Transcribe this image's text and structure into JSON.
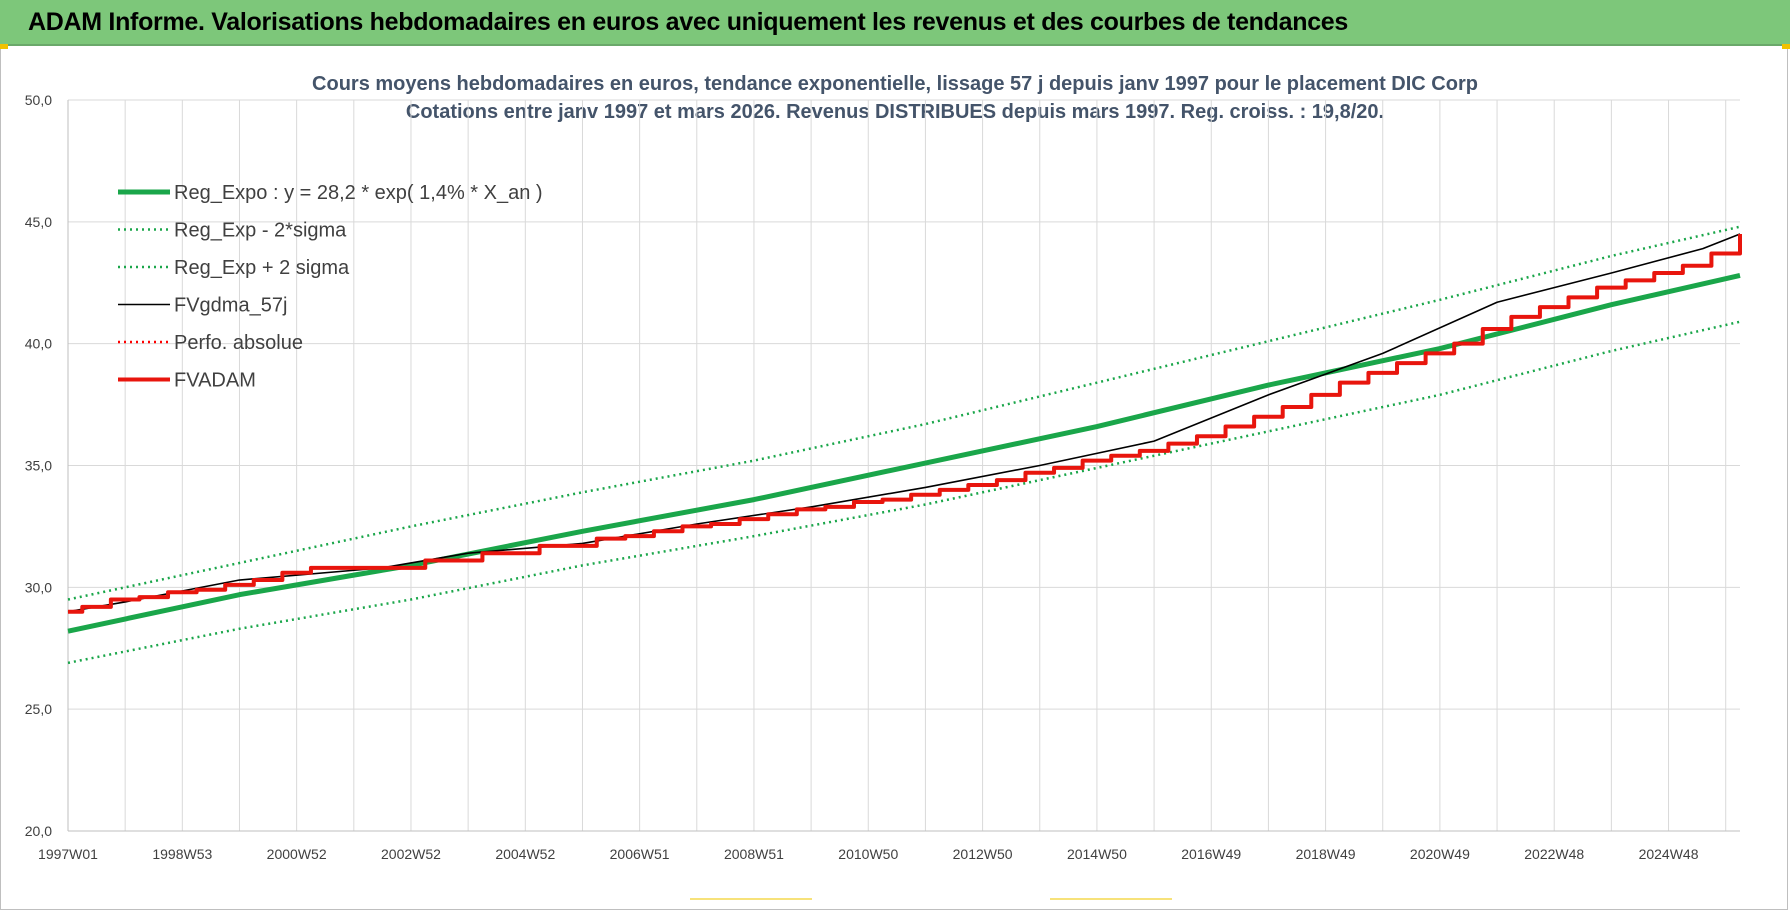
{
  "banner": {
    "title": "ADAM Informe. Valorisations hebdomadaires en euros avec uniquement les revenus et des courbes de tendances",
    "color": "#7dc77a"
  },
  "chart_data": {
    "type": "line",
    "title_line1": "Cours moyens hebdomadaires en euros, tendance exponentielle, lissage 57 j depuis janv 1997 pour le placement DIC Corp",
    "title_line2": "Cotations entre janv 1997 et mars 2026. Revenus DISTRIBUES depuis mars 1997. Reg. croiss. : 19,8/20.",
    "ylim": [
      20,
      50
    ],
    "yticks": [
      "20,0",
      "25,0",
      "30,0",
      "35,0",
      "40,0",
      "45,0",
      "50,0"
    ],
    "xlim": [
      1997.0,
      2026.25
    ],
    "xticks": [
      {
        "label": "1997W01",
        "year": 1997.0
      },
      {
        "label": "1998W53",
        "year": 1999.0
      },
      {
        "label": "2000W52",
        "year": 2001.0
      },
      {
        "label": "2002W52",
        "year": 2003.0
      },
      {
        "label": "2004W52",
        "year": 2005.0
      },
      {
        "label": "2006W51",
        "year": 2007.0
      },
      {
        "label": "2008W51",
        "year": 2009.0
      },
      {
        "label": "2010W50",
        "year": 2011.0
      },
      {
        "label": "2012W50",
        "year": 2013.0
      },
      {
        "label": "2014W50",
        "year": 2015.0
      },
      {
        "label": "2016W49",
        "year": 2017.0
      },
      {
        "label": "2018W49",
        "year": 2019.0
      },
      {
        "label": "2020W49",
        "year": 2021.0
      },
      {
        "label": "2022W48",
        "year": 2023.0
      },
      {
        "label": "2024W48",
        "year": 2025.0
      }
    ],
    "grid": true,
    "legend_position": "top-left",
    "series": [
      {
        "name": "Reg_Expo : y = 28,2 * exp( 1,4% *  X_an )",
        "color": "#1aa64a",
        "style": "solid-thick",
        "x": [
          1997.0,
          2000.0,
          2003.0,
          2006.0,
          2009.0,
          2012.0,
          2015.0,
          2018.0,
          2021.0,
          2024.0,
          2026.25
        ],
        "y": [
          28.2,
          29.7,
          30.9,
          32.3,
          33.6,
          35.1,
          36.6,
          38.3,
          39.8,
          41.6,
          42.8
        ]
      },
      {
        "name": "Reg_Exp - 2*sigma",
        "color": "#1aa64a",
        "style": "dotted",
        "x": [
          1997.0,
          2000.0,
          2003.0,
          2006.0,
          2009.0,
          2012.0,
          2015.0,
          2018.0,
          2021.0,
          2024.0,
          2026.25
        ],
        "y": [
          26.9,
          28.3,
          29.5,
          30.9,
          32.1,
          33.4,
          34.9,
          36.4,
          37.9,
          39.7,
          40.9
        ]
      },
      {
        "name": "Reg_Exp + 2 sigma",
        "color": "#1aa64a",
        "style": "dotted",
        "x": [
          1997.0,
          2000.0,
          2003.0,
          2006.0,
          2009.0,
          2012.0,
          2015.0,
          2018.0,
          2021.0,
          2024.0,
          2026.25
        ],
        "y": [
          29.5,
          31.0,
          32.5,
          33.9,
          35.2,
          36.7,
          38.4,
          40.1,
          41.8,
          43.6,
          44.8
        ]
      },
      {
        "name": "FVgdma_57j",
        "color": "#000000",
        "style": "solid",
        "x": [
          1997.0,
          1998.0,
          2000.0,
          2002.5,
          2004.0,
          2006.0,
          2008.0,
          2010.0,
          2012.0,
          2014.0,
          2016.0,
          2018.0,
          2020.0,
          2022.0,
          2024.0,
          2025.6,
          2026.25
        ],
        "y": [
          29.0,
          29.4,
          30.3,
          30.8,
          31.4,
          31.8,
          32.6,
          33.3,
          34.1,
          35.0,
          36.0,
          37.9,
          39.6,
          41.7,
          42.9,
          43.9,
          44.5
        ]
      },
      {
        "name": "Perfo. absolue",
        "color": "#ff0000",
        "style": "dotted",
        "x": [],
        "y": []
      },
      {
        "name": "FVADAM",
        "color": "#e8150d",
        "style": "step-thick",
        "x": [
          1997.0,
          1997.25,
          1997.75,
          1998.25,
          1998.75,
          1999.25,
          1999.75,
          2000.25,
          2000.75,
          2001.25,
          2001.75,
          2002.25,
          2002.75,
          2003.25,
          2003.75,
          2004.25,
          2004.75,
          2005.25,
          2005.75,
          2006.25,
          2006.75,
          2007.25,
          2007.75,
          2008.25,
          2008.75,
          2009.25,
          2009.75,
          2010.25,
          2010.75,
          2011.25,
          2011.75,
          2012.25,
          2012.75,
          2013.25,
          2013.75,
          2014.25,
          2014.75,
          2015.25,
          2015.75,
          2016.25,
          2016.75,
          2017.25,
          2017.75,
          2018.25,
          2018.75,
          2019.25,
          2019.75,
          2020.25,
          2020.75,
          2021.25,
          2021.75,
          2022.25,
          2022.75,
          2023.25,
          2023.75,
          2024.25,
          2024.75,
          2025.25,
          2025.75,
          2026.25
        ],
        "y": [
          29.0,
          29.2,
          29.5,
          29.6,
          29.8,
          29.9,
          30.1,
          30.3,
          30.6,
          30.8,
          30.8,
          30.8,
          30.8,
          31.1,
          31.1,
          31.4,
          31.4,
          31.7,
          31.7,
          32.0,
          32.1,
          32.3,
          32.5,
          32.6,
          32.8,
          33.0,
          33.2,
          33.3,
          33.5,
          33.6,
          33.8,
          34.0,
          34.2,
          34.4,
          34.7,
          34.9,
          35.2,
          35.4,
          35.6,
          35.9,
          36.2,
          36.6,
          37.0,
          37.4,
          37.9,
          38.4,
          38.8,
          39.2,
          39.6,
          40.0,
          40.6,
          41.1,
          41.5,
          41.9,
          42.3,
          42.6,
          42.9,
          43.2,
          43.7,
          44.5
        ]
      }
    ]
  }
}
